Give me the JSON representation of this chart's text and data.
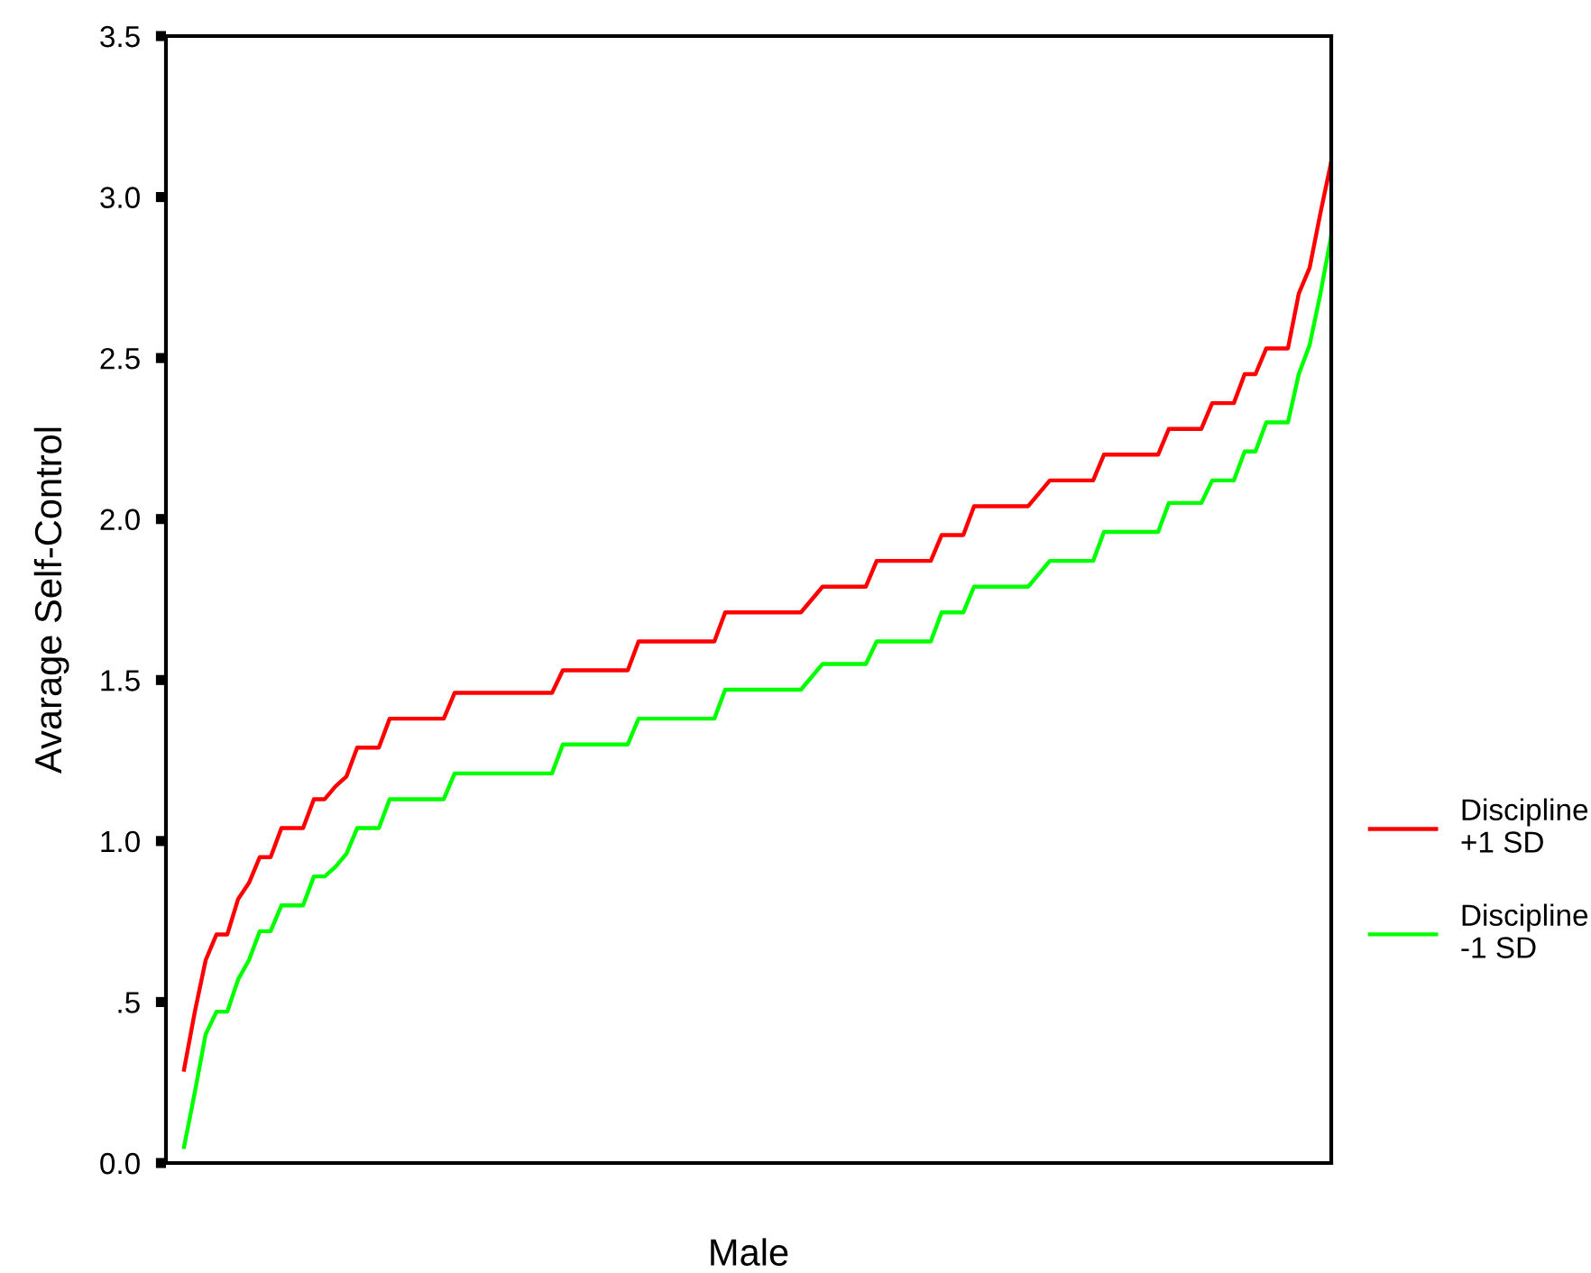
{
  "chart_data": {
    "type": "line",
    "xlabel": "Male",
    "ylabel": "Avarage Self-Control",
    "categories": [
      null,
      null,
      null,
      null,
      null,
      null,
      null,
      null,
      null,
      null,
      null,
      null,
      null,
      null,
      null,
      null,
      null,
      null,
      null,
      null,
      null,
      null,
      null,
      null,
      null,
      null,
      null,
      null,
      null,
      null,
      null,
      null,
      null,
      null,
      null,
      null,
      null,
      null,
      null,
      null,
      null,
      null,
      null,
      null,
      null,
      null,
      null,
      null,
      null,
      null,
      null,
      null,
      null,
      null,
      null,
      null,
      null,
      null,
      null,
      null,
      null,
      null,
      null,
      null,
      null,
      null,
      null,
      null,
      null,
      null,
      null,
      null,
      null,
      null,
      null,
      null,
      null,
      null,
      null,
      null,
      null,
      null,
      null,
      null,
      null,
      null,
      null,
      null,
      null,
      null,
      null,
      null,
      null,
      null,
      null,
      null,
      null,
      null,
      null,
      null,
      null,
      null,
      null,
      null,
      null,
      null,
      null
    ],
    "series": [
      {
        "name": "Discipline\n+1 SD",
        "color": "#ff0000",
        "values": [
          0.29,
          0.47,
          0.63,
          0.71,
          0.71,
          0.82,
          0.87,
          0.95,
          0.95,
          1.04,
          1.04,
          1.04,
          1.13,
          1.13,
          1.17,
          1.2,
          1.29,
          1.29,
          1.29,
          1.38,
          1.38,
          1.38,
          1.38,
          1.38,
          1.38,
          1.46,
          1.46,
          1.46,
          1.46,
          1.46,
          1.46,
          1.46,
          1.46,
          1.46,
          1.46,
          1.53,
          1.53,
          1.53,
          1.53,
          1.53,
          1.53,
          1.53,
          1.62,
          1.62,
          1.62,
          1.62,
          1.62,
          1.62,
          1.62,
          1.62,
          1.71,
          1.71,
          1.71,
          1.71,
          1.71,
          1.71,
          1.71,
          1.71,
          1.75,
          1.79,
          1.79,
          1.79,
          1.79,
          1.79,
          1.87,
          1.87,
          1.87,
          1.87,
          1.87,
          1.87,
          1.95,
          1.95,
          1.95,
          2.04,
          2.04,
          2.04,
          2.04,
          2.04,
          2.04,
          2.08,
          2.12,
          2.12,
          2.12,
          2.12,
          2.12,
          2.2,
          2.2,
          2.2,
          2.2,
          2.2,
          2.2,
          2.28,
          2.28,
          2.28,
          2.28,
          2.36,
          2.36,
          2.36,
          2.45,
          2.45,
          2.53,
          2.53,
          2.53,
          2.7,
          2.78,
          2.95,
          3.11
        ]
      },
      {
        "name": "Discipline\n-1 SD",
        "color": "#00ff00",
        "values": [
          0.05,
          0.22,
          0.4,
          0.47,
          0.47,
          0.57,
          0.63,
          0.72,
          0.72,
          0.8,
          0.8,
          0.8,
          0.89,
          0.89,
          0.92,
          0.96,
          1.04,
          1.04,
          1.04,
          1.13,
          1.13,
          1.13,
          1.13,
          1.13,
          1.13,
          1.21,
          1.21,
          1.21,
          1.21,
          1.21,
          1.21,
          1.21,
          1.21,
          1.21,
          1.21,
          1.3,
          1.3,
          1.3,
          1.3,
          1.3,
          1.3,
          1.3,
          1.38,
          1.38,
          1.38,
          1.38,
          1.38,
          1.38,
          1.38,
          1.38,
          1.47,
          1.47,
          1.47,
          1.47,
          1.47,
          1.47,
          1.47,
          1.47,
          1.51,
          1.55,
          1.55,
          1.55,
          1.55,
          1.55,
          1.62,
          1.62,
          1.62,
          1.62,
          1.62,
          1.62,
          1.71,
          1.71,
          1.71,
          1.79,
          1.79,
          1.79,
          1.79,
          1.79,
          1.79,
          1.83,
          1.87,
          1.87,
          1.87,
          1.87,
          1.87,
          1.96,
          1.96,
          1.96,
          1.96,
          1.96,
          1.96,
          2.05,
          2.05,
          2.05,
          2.05,
          2.12,
          2.12,
          2.12,
          2.21,
          2.21,
          2.3,
          2.3,
          2.3,
          2.45,
          2.54,
          2.7,
          2.88
        ]
      }
    ],
    "ylim": [
      0,
      3.5
    ],
    "yticks": [
      {
        "value": 0,
        "label": "0.0"
      },
      {
        "value": 0.5,
        "label": ".5"
      },
      {
        "value": 1.0,
        "label": "1.0"
      },
      {
        "value": 1.5,
        "label": "1.5"
      },
      {
        "value": 2.0,
        "label": "2.0"
      },
      {
        "value": 2.5,
        "label": "2.5"
      },
      {
        "value": 3.0,
        "label": "3.0"
      },
      {
        "value": 3.5,
        "label": "3.5"
      }
    ],
    "tick_labels": "y",
    "legend": "right",
    "grid": false,
    "line_style": "solid",
    "marker": "none"
  }
}
